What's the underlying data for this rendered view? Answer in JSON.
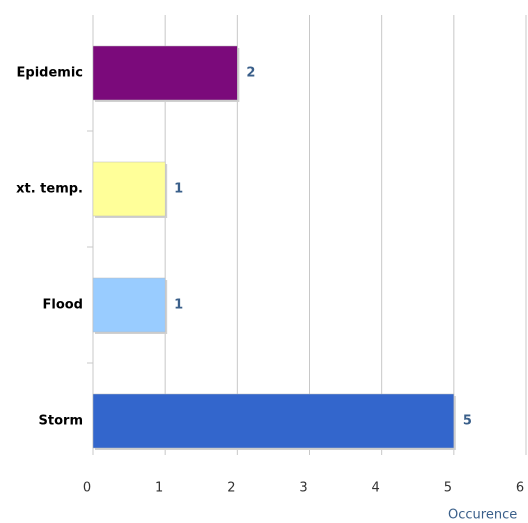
{
  "chart_data": {
    "type": "bar",
    "orientation": "horizontal",
    "categories": [
      "Epidemic",
      "xt. temp.",
      "Flood",
      "Storm"
    ],
    "values": [
      2,
      1,
      1,
      5
    ],
    "colors": [
      "#7b0a7b",
      "#ffff99",
      "#99ccff",
      "#3366cc"
    ],
    "x_label": "Occurence",
    "xlim": [
      0,
      6
    ],
    "xticks": [
      0,
      1,
      2,
      3,
      4,
      5,
      6
    ],
    "grid": true
  }
}
